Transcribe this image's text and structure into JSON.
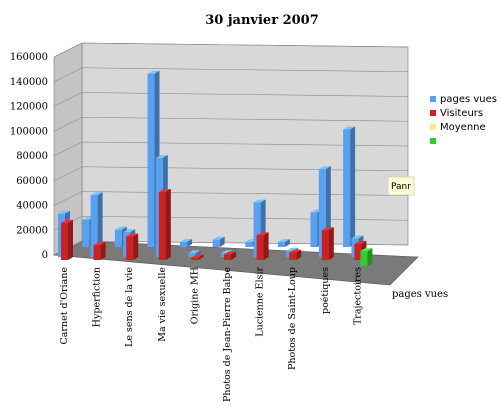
{
  "chart_data": {
    "type": "bar",
    "title": "30 janvier 2007",
    "categories": [
      "Carnet d'Oriane",
      "Hyperfiction",
      "Le sens de la vie",
      "Ma vie sexuelle",
      "Origine MH",
      "Photos de Jean-Pierre Balpe",
      "Lucienne Elsir",
      "Photos de Saint-Loup",
      "poétiques",
      "Trajectoires"
    ],
    "y_ticks": [
      "0",
      "20000",
      "40000",
      "60000",
      "80000",
      "100000",
      "120000",
      "140000",
      "160000"
    ],
    "ylim": [
      0,
      160000
    ],
    "series": [
      {
        "name": "pages vues",
        "color": "#5aa0f0",
        "values": [
          35000,
          50000,
          20000,
          80000,
          3000,
          3000,
          44000,
          5000,
          71000,
          15000
        ]
      },
      {
        "name": "Visiteurs",
        "color": "#cc2222",
        "values": [
          30000,
          12000,
          19000,
          55000,
          2000,
          4500,
          20000,
          6000,
          24000,
          13000
        ]
      },
      {
        "name": "Moyenne",
        "color": "#f0f08a",
        "values": [
          0,
          0,
          0,
          0,
          0,
          0,
          0,
          0,
          0,
          0
        ]
      },
      {
        "name": "",
        "color": "#33cc33",
        "values": [
          0,
          0,
          0,
          0,
          0,
          0,
          0,
          0,
          0,
          12000
        ]
      }
    ],
    "secondary_values": [
      22000,
      14000,
      140000,
      4000,
      6000,
      4000,
      4000,
      28000,
      95000,
      0
    ],
    "depth_label": "pages vues",
    "legend_placement": "right",
    "grid": true
  },
  "tooltip": {
    "text": "Panr"
  }
}
